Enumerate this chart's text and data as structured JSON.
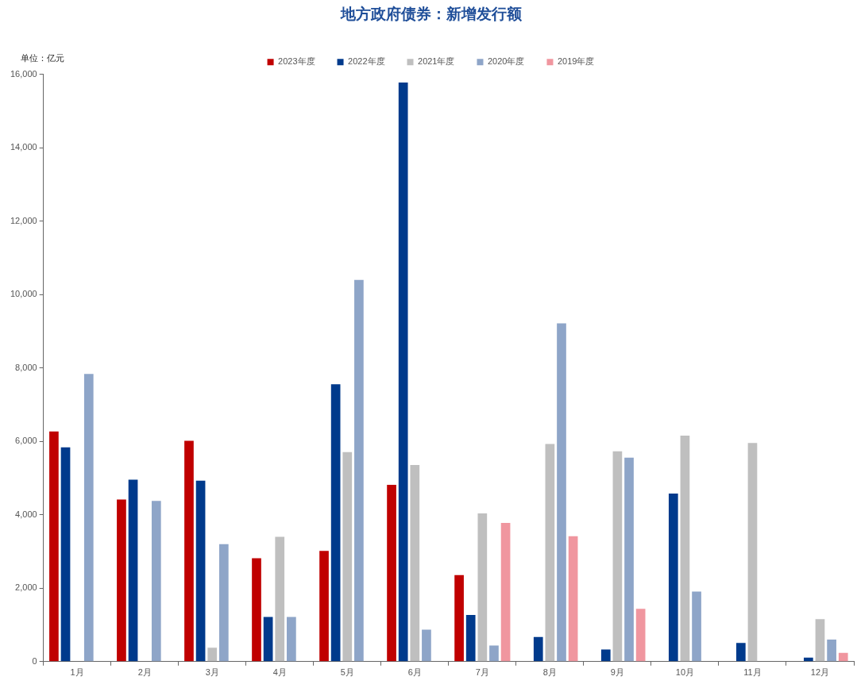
{
  "chart_data": {
    "type": "bar",
    "title": "地方政府债券：新增发行额",
    "ylabel": "单位：亿元",
    "categories": [
      "1月",
      "2月",
      "3月",
      "4月",
      "5月",
      "6月",
      "7月",
      "8月",
      "9月",
      "10月",
      "11月",
      "12月"
    ],
    "series": [
      {
        "name": "2023年度",
        "color": "#c00000",
        "values": [
          6270,
          4420,
          6020,
          2820,
          3020,
          4820,
          2360,
          null,
          null,
          null,
          null,
          null
        ]
      },
      {
        "name": "2022年度",
        "color": "#003a8c",
        "values": [
          5840,
          4960,
          4930,
          1220,
          7560,
          15780,
          1270,
          670,
          330,
          4580,
          510,
          110
        ]
      },
      {
        "name": "2021年度",
        "color": "#bfbfbf",
        "values": [
          null,
          null,
          380,
          3400,
          5710,
          5360,
          4040,
          5930,
          5730,
          6160,
          5960,
          1160
        ]
      },
      {
        "name": "2020年度",
        "color": "#8ea5c8",
        "values": [
          7840,
          4380,
          3200,
          1220,
          10400,
          870,
          440,
          9220,
          5560,
          1910,
          null,
          600
        ]
      },
      {
        "name": "2019年度",
        "color": "#f0969f",
        "values": [
          null,
          null,
          null,
          null,
          null,
          null,
          3780,
          3420,
          1440,
          null,
          null,
          240
        ]
      }
    ],
    "ylim": [
      0,
      16000
    ],
    "yticks": [
      {
        "value": 0,
        "label": "0"
      },
      {
        "value": 2000,
        "label": "2,000"
      },
      {
        "value": 4000,
        "label": "4,000"
      },
      {
        "value": 6000,
        "label": "6,000"
      },
      {
        "value": 8000,
        "label": "8,000"
      },
      {
        "value": 10000,
        "label": "10,000"
      },
      {
        "value": 12000,
        "label": "12,000"
      },
      {
        "value": 14000,
        "label": "14,000"
      },
      {
        "value": 16000,
        "label": "16,000"
      }
    ],
    "grid": false,
    "legend": "top"
  }
}
